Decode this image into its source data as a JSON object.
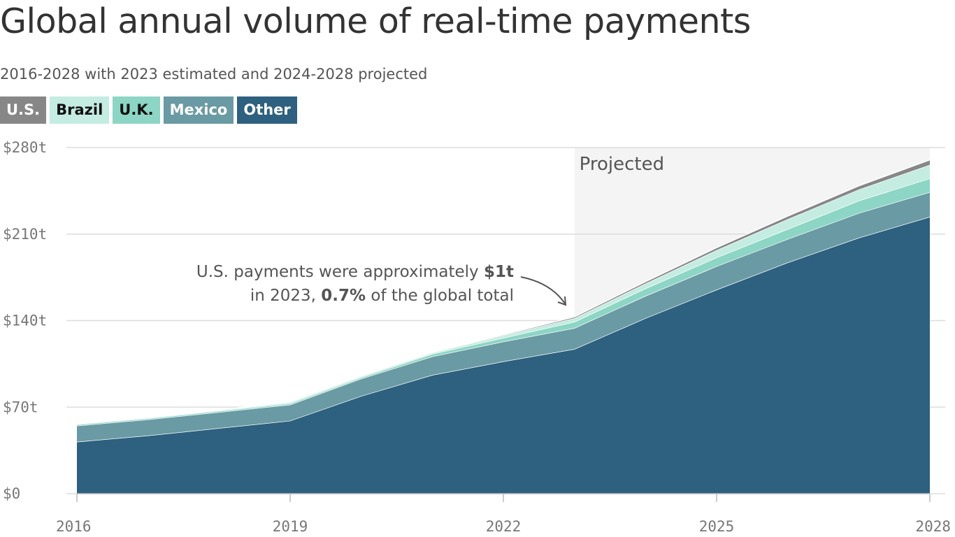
{
  "chart_data": {
    "type": "stacked_area",
    "title": "Global annual volume of real-time payments",
    "subtitle": "2016-2028 with 2023 estimated and 2024-2028 projected",
    "x": [
      2016,
      2017,
      2018,
      2019,
      2020,
      2021,
      2022,
      2023,
      2024,
      2025,
      2026,
      2027,
      2028
    ],
    "series": [
      {
        "name": "U.S.",
        "color": "#878787",
        "values": [
          0.2,
          0.2,
          0.2,
          0.2,
          0.3,
          0.3,
          0.5,
          1,
          1.5,
          2,
          2.5,
          3,
          4
        ]
      },
      {
        "name": "Brazil",
        "color": "#c4ece1",
        "values": [
          0.5,
          0.5,
          0.5,
          1,
          1,
          1,
          2,
          3,
          4,
          6,
          8,
          9,
          11
        ]
      },
      {
        "name": "U.K.",
        "color": "#8dd5c4",
        "values": [
          1,
          1,
          1,
          1,
          1,
          2,
          3,
          5,
          6,
          7,
          8,
          10,
          11
        ]
      },
      {
        "name": "Mexico",
        "color": "#6a9aa4",
        "values": [
          13,
          13,
          13,
          13,
          14,
          15,
          16,
          17,
          18,
          19,
          19,
          20,
          20
        ]
      },
      {
        "name": "Other",
        "color": "#2e607f",
        "values": [
          42,
          47,
          53,
          59,
          79,
          96,
          107,
          117,
          142,
          165,
          187,
          207,
          224
        ]
      }
    ],
    "xlim": [
      2016,
      2028
    ],
    "xticks": [
      2016,
      2019,
      2022,
      2025,
      2028
    ],
    "ylim": [
      0,
      280
    ],
    "yticks": [
      {
        "value": 0,
        "label": "$0"
      },
      {
        "value": 70,
        "label": "$70t"
      },
      {
        "value": 140,
        "label": "$140t"
      },
      {
        "value": 210,
        "label": "$210t"
      },
      {
        "value": 280,
        "label": "$280t"
      }
    ],
    "grid": true,
    "shaded_region": {
      "label": "Projected",
      "from": 2023,
      "to": 2028
    },
    "annotation": {
      "lines": [
        [
          {
            "text": "U.S. payments were approximately ",
            "bold": false
          },
          {
            "text": "$1t",
            "bold": true
          }
        ],
        [
          {
            "text": "in 2023, ",
            "bold": false
          },
          {
            "text": "0.7%",
            "bold": true
          },
          {
            "text": " of the global total",
            "bold": false
          }
        ]
      ]
    }
  }
}
